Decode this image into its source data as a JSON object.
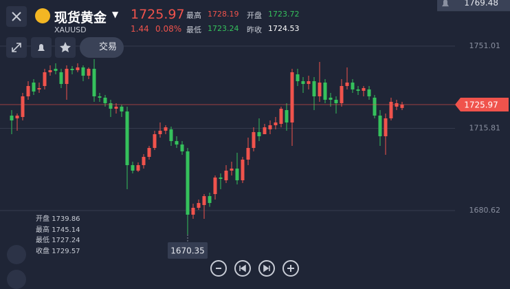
{
  "header": {
    "title": "现货黄金",
    "symbol": "XAUUSD",
    "price": "1725.97",
    "change": "1.44",
    "change_pct": "0.08%",
    "high_label": "最高",
    "high": "1728.19",
    "open_label": "开盘",
    "open": "1723.72",
    "low_label": "最低",
    "low": "1723.24",
    "prev_close_label": "昨收",
    "prev_close": "1724.53"
  },
  "toolbar": {
    "trade_label": "交易"
  },
  "ohlc_info": {
    "rows": [
      {
        "label": "开盘",
        "value": "1739.86"
      },
      {
        "label": "最高",
        "value": "1745.14"
      },
      {
        "label": "最低",
        "value": "1727.24"
      },
      {
        "label": "收盘",
        "value": "1729.57"
      }
    ]
  },
  "chart_data": {
    "type": "candlestick",
    "open": [
      1721.26,
      1720.09,
      1720.67,
      1729.51,
      1735.4,
      1732.46,
      1733.93,
      1739.82,
      1741.29,
      1739.82,
      1734.81,
      1741.29,
      1740.7,
      1741.88,
      1738.34,
      1741.29,
      1729.51,
      1728.93,
      1726.57,
      1724.21,
      1725.09,
      1723.03,
      1700.06,
      1697.7,
      1700.06,
      1703.59,
      1707.42,
      1713.31,
      1714.79,
      1715.38,
      1710.36,
      1708.89,
      1705.95,
      1678.86,
      1681.8,
      1682.98,
      1686.81,
      1687.68,
      1694.76,
      1693.58,
      1697.7,
      1698.59,
      1693.58,
      1702.42,
      1707.42,
      1714.2,
      1713.31,
      1715.38,
      1717.14,
      1717.73,
      1723.62,
      1718.32,
      1738.93,
      1735.99,
      1734.81,
      1735.99,
      1729.51,
      1735.4,
      1728.93,
      1728.04,
      1726.57,
      1733.93,
      1735.4,
      1732.46,
      1731.87,
      1732.46,
      1728.93,
      1721.26,
      1712.43,
      1720.09,
      1725.09,
      1724.53
    ],
    "high": [
      1723.62,
      1722.15,
      1730.98,
      1735.99,
      1736.87,
      1735.4,
      1741.29,
      1742.76,
      1743.65,
      1741.29,
      1742.76,
      1742.47,
      1743.65,
      1742.76,
      1741.88,
      1745.41,
      1730.98,
      1730.1,
      1728.04,
      1726.57,
      1725.98,
      1725.09,
      1701.53,
      1701.24,
      1704.77,
      1708.3,
      1714.79,
      1718.32,
      1717.14,
      1716.55,
      1712.43,
      1710.36,
      1707.42,
      1683.57,
      1685.33,
      1687.68,
      1688.27,
      1695.64,
      1696.52,
      1700.06,
      1701.53,
      1705.36,
      1703.59,
      1711.84,
      1716.26,
      1720.09,
      1717.73,
      1719.2,
      1720.67,
      1725.09,
      1726.57,
      1741.29,
      1741.29,
      1737.76,
      1738.34,
      1737.76,
      1744.23,
      1736.87,
      1730.98,
      1729.51,
      1736.87,
      1741.88,
      1736.87,
      1733.93,
      1733.93,
      1733.93,
      1730.1,
      1723.62,
      1722.15,
      1728.93,
      1728.04,
      1727.16
    ],
    "low": [
      1713.31,
      1714.79,
      1719.2,
      1728.04,
      1730.1,
      1730.98,
      1732.46,
      1738.34,
      1738.93,
      1733.04,
      1728.04,
      1738.93,
      1739.82,
      1735.99,
      1736.87,
      1727.16,
      1727.16,
      1725.09,
      1720.67,
      1722.15,
      1720.67,
      1689.75,
      1696.52,
      1697.11,
      1698.59,
      1702.42,
      1706.53,
      1711.84,
      1713.31,
      1708.3,
      1707.42,
      1704.48,
      1670.35,
      1677.09,
      1680.92,
      1677.09,
      1682.24,
      1685.33,
      1689.75,
      1692.4,
      1695.64,
      1691.81,
      1692.4,
      1700.06,
      1705.95,
      1710.36,
      1713.31,
      1713.31,
      1715.38,
      1716.26,
      1714.79,
      1708.3,
      1733.93,
      1730.98,
      1732.46,
      1723.62,
      1727.16,
      1726.57,
      1725.09,
      1722.15,
      1725.09,
      1732.46,
      1730.98,
      1730.1,
      1729.51,
      1728.04,
      1720.09,
      1708.3,
      1704.48,
      1719.2,
      1723.62,
      1723.62
    ],
    "close": [
      1719.2,
      1721.26,
      1729.51,
      1733.93,
      1731.57,
      1733.04,
      1739.82,
      1740.7,
      1740.41,
      1734.81,
      1741.29,
      1740.7,
      1741.88,
      1738.34,
      1741.29,
      1729.51,
      1728.93,
      1726.57,
      1724.21,
      1725.09,
      1723.03,
      1700.06,
      1697.7,
      1700.06,
      1703.59,
      1707.42,
      1713.31,
      1714.79,
      1716.26,
      1710.36,
      1708.89,
      1705.95,
      1678.86,
      1681.8,
      1683.86,
      1686.81,
      1683.86,
      1694.76,
      1694.17,
      1697.7,
      1698.59,
      1693.58,
      1702.42,
      1707.42,
      1714.2,
      1712.43,
      1716.26,
      1717.14,
      1718.32,
      1724.21,
      1718.32,
      1739.82,
      1735.99,
      1734.81,
      1735.99,
      1729.51,
      1735.4,
      1728.04,
      1728.04,
      1726.57,
      1733.93,
      1735.4,
      1732.46,
      1731.87,
      1733.04,
      1729.51,
      1721.26,
      1712.43,
      1720.09,
      1727.16,
      1726.57,
      1725.97
    ],
    "ylim": [
      1650.29,
      1770.74
    ],
    "yticks": [
      1680.62,
      1715.81,
      1751.01
    ],
    "grid": true,
    "current_price": 1725.97,
    "low_marker": 1670.35,
    "top_label": 1769.48,
    "up_color": "#f0534c",
    "down_color": "#35c15c"
  }
}
